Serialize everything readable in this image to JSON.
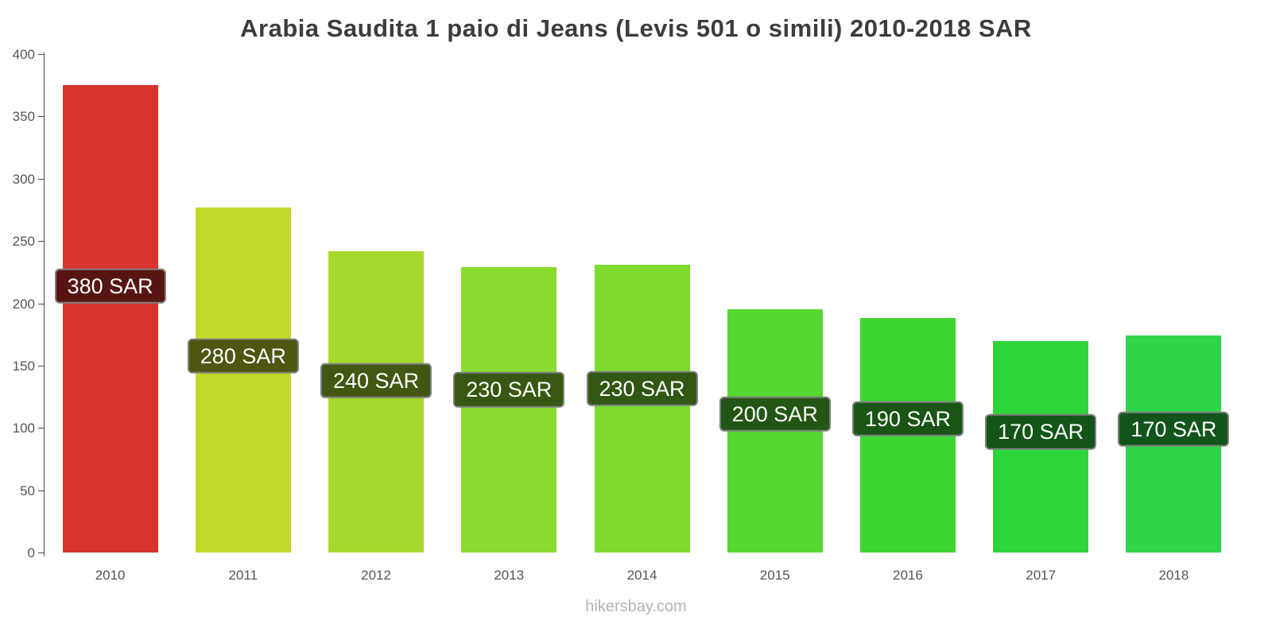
{
  "title": "Arabia Saudita 1 paio di Jeans (Levis 501 o simili) 2010-2018 SAR",
  "footer": "hikersbay.com",
  "chart_data": {
    "type": "bar",
    "title": "Arabia Saudita 1 paio di Jeans (Levis 501 o simili) 2010-2018 SAR",
    "categories": [
      "2010",
      "2011",
      "2012",
      "2013",
      "2014",
      "2015",
      "2016",
      "2017",
      "2018"
    ],
    "values": [
      380,
      280,
      240,
      230,
      230,
      200,
      190,
      170,
      170
    ],
    "bar_values": [
      375,
      277,
      242,
      229,
      231,
      195,
      188,
      170,
      174
    ],
    "labels": [
      "380 SAR",
      "280 SAR",
      "240 SAR",
      "230 SAR",
      "230 SAR",
      "200 SAR",
      "190 SAR",
      "170 SAR",
      "170 SAR"
    ],
    "bar_colors": [
      "#d8342c",
      "#c3d82d",
      "#a6d92e",
      "#8ada2f",
      "#7eda30",
      "#57d731",
      "#3fd532",
      "#2ed53a",
      "#2ed546"
    ],
    "unit": "SAR",
    "xlabel": "",
    "ylabel": "",
    "ylim": [
      0,
      400
    ],
    "ytick_step": 50,
    "grid": false,
    "legend_position": "none"
  },
  "style_colors": {
    "title_text": "#3c3c3c",
    "axis_text": "#555555",
    "axis_line": "#4a4a4a",
    "label_text": "#ffffff",
    "label_border": "#7f7f7f",
    "footer_text": "#b3b3b3"
  }
}
